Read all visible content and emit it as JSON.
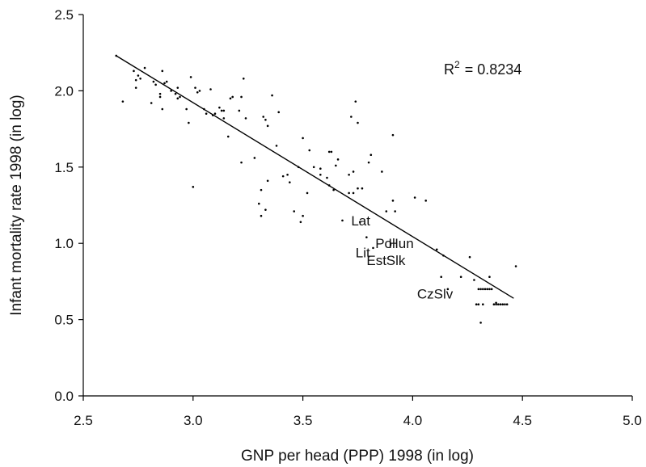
{
  "chart_data": {
    "type": "scatter",
    "xlabel": "GNP per head (PPP) 1998 (in log)",
    "ylabel": "Infant mortality rate 1998 (in log)",
    "xlim": [
      2.5,
      5.0
    ],
    "ylim": [
      0.0,
      2.5
    ],
    "x_ticks": [
      "2.5",
      "3.0",
      "3.5",
      "4.0",
      "4.5",
      "5.0"
    ],
    "y_ticks": [
      "0.0",
      "0.5",
      "1.0",
      "1.5",
      "2.0",
      "2.5"
    ],
    "grid": false,
    "r2_label": "R",
    "r2_sup": "2",
    "r2_value": "= 0.8234",
    "trendline": {
      "x": [
        2.65,
        4.46
      ],
      "y": [
        2.23,
        0.64
      ]
    },
    "annotations": [
      {
        "text": "Lat",
        "x": 3.72,
        "y": 1.15
      },
      {
        "text": "Pol",
        "x": 3.83,
        "y": 1.0
      },
      {
        "text": "Hun",
        "x": 3.89,
        "y": 1.0
      },
      {
        "text": "Lit",
        "x": 3.74,
        "y": 0.94
      },
      {
        "text": "Est",
        "x": 3.79,
        "y": 0.89
      },
      {
        "text": "Slk",
        "x": 3.88,
        "y": 0.89
      },
      {
        "text": "CzSlv",
        "x": 4.02,
        "y": 0.67
      }
    ],
    "series": [
      {
        "x": [
          2.65,
          2.68,
          2.73,
          2.74,
          2.74,
          2.75,
          2.76,
          2.78,
          2.81,
          2.82,
          2.83,
          2.85,
          2.85,
          2.86,
          2.86,
          2.87,
          2.88,
          2.9,
          2.92,
          2.93,
          2.93,
          2.94,
          2.97,
          2.98,
          2.99,
          3.0,
          3.01,
          3.02,
          3.03,
          3.05,
          3.06,
          3.08,
          3.09,
          3.1,
          3.12,
          3.13,
          3.14,
          3.14,
          3.16,
          3.17,
          3.18,
          3.21,
          3.22,
          3.22,
          3.23,
          3.24,
          3.28,
          3.3,
          3.31,
          3.31,
          3.32,
          3.33,
          3.33,
          3.34,
          3.34,
          3.36,
          3.38,
          3.39,
          3.41,
          3.43,
          3.44,
          3.46,
          3.48,
          3.49,
          3.5,
          3.5,
          3.52,
          3.53,
          3.55,
          3.58,
          3.58,
          3.61,
          3.62,
          3.62,
          3.63,
          3.64,
          3.65,
          3.66,
          3.68,
          3.71,
          3.71,
          3.72,
          3.73,
          3.73,
          3.74,
          3.75,
          3.75,
          3.76,
          3.77,
          3.79,
          3.8,
          3.81,
          3.82,
          3.86,
          3.88,
          3.91,
          3.91,
          3.92,
          4.01,
          4.06,
          4.11,
          4.13,
          4.14,
          4.16,
          4.22,
          4.26,
          4.28,
          4.29,
          4.3,
          4.3,
          4.31,
          4.31,
          4.32,
          4.32,
          4.33,
          4.34,
          4.35,
          4.35,
          4.36,
          4.37,
          4.38,
          4.38,
          4.39,
          4.4,
          4.41,
          4.42,
          4.43,
          4.47
        ],
        "y": [
          2.23,
          1.93,
          2.13,
          2.07,
          2.02,
          2.1,
          2.08,
          2.15,
          1.92,
          2.06,
          2.04,
          1.98,
          1.96,
          2.13,
          1.88,
          2.05,
          2.06,
          2.0,
          1.98,
          1.95,
          2.02,
          1.96,
          1.88,
          1.79,
          2.09,
          1.37,
          2.02,
          1.99,
          2.0,
          1.88,
          1.85,
          2.01,
          1.84,
          1.85,
          1.89,
          1.87,
          1.87,
          1.82,
          1.7,
          1.95,
          1.96,
          1.87,
          1.96,
          1.53,
          2.08,
          1.82,
          1.56,
          1.26,
          1.35,
          1.18,
          1.83,
          1.81,
          1.22,
          1.77,
          1.41,
          1.97,
          1.64,
          1.86,
          1.44,
          1.45,
          1.4,
          1.21,
          1.5,
          1.14,
          1.69,
          1.18,
          1.33,
          1.61,
          1.5,
          1.49,
          1.45,
          1.43,
          1.6,
          1.38,
          1.6,
          1.35,
          1.51,
          1.55,
          1.15,
          1.33,
          1.45,
          1.83,
          1.47,
          1.33,
          1.93,
          1.36,
          1.79,
          1.14,
          1.36,
          1.04,
          1.53,
          1.58,
          0.97,
          1.47,
          1.21,
          1.71,
          1.28,
          1.21,
          1.3,
          1.28,
          0.96,
          0.78,
          0.92,
          0.7,
          0.78,
          0.91,
          0.76,
          0.6,
          0.6,
          0.7,
          0.48,
          0.7,
          0.6,
          0.7,
          0.7,
          0.7,
          0.7,
          0.78,
          0.7,
          0.6,
          0.6,
          0.61,
          0.6,
          0.6,
          0.6,
          0.6,
          0.6,
          0.85
        ]
      }
    ]
  }
}
